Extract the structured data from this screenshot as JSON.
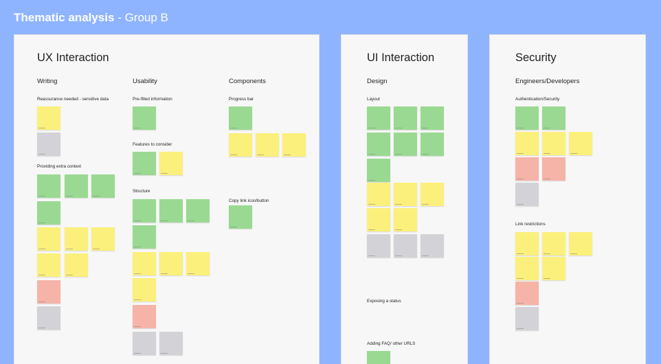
{
  "board": {
    "title_bold": "Thematic analysis",
    "title_rest": " - Group B"
  },
  "colors": {
    "background": "#8fb4ff",
    "frame": "#f7f7f7",
    "sticky_green": "#9ad992",
    "sticky_yellow": "#fbf07b",
    "sticky_gray": "#d3d3d7",
    "sticky_pink": "#f6b3a8"
  },
  "frames": {
    "ux": {
      "title": "UX Interaction",
      "columns": {
        "writing": "Writing",
        "usability": "Usability",
        "components": "Components"
      },
      "sections": {
        "reassurance": "Reassurance needed - sensitive data",
        "extra_context": "Providing extra context",
        "prefilled": "Pre-filled information",
        "features": "Features to consider",
        "structure": "Structure",
        "progress": "Progress bar",
        "copy_link": "Copy link icon/button"
      }
    },
    "ui": {
      "title": "UI Interaction",
      "columns": {
        "design": "Design"
      },
      "sections": {
        "layout": "Layout",
        "exposing": "Exposing a status",
        "faq": "Adding FAQ/ other URLS"
      }
    },
    "security": {
      "title": "Security",
      "columns": {
        "engineers": "Engineers/Developers"
      },
      "sections": {
        "auth": "Authentication/Security",
        "link": "Link restrictions"
      }
    }
  }
}
